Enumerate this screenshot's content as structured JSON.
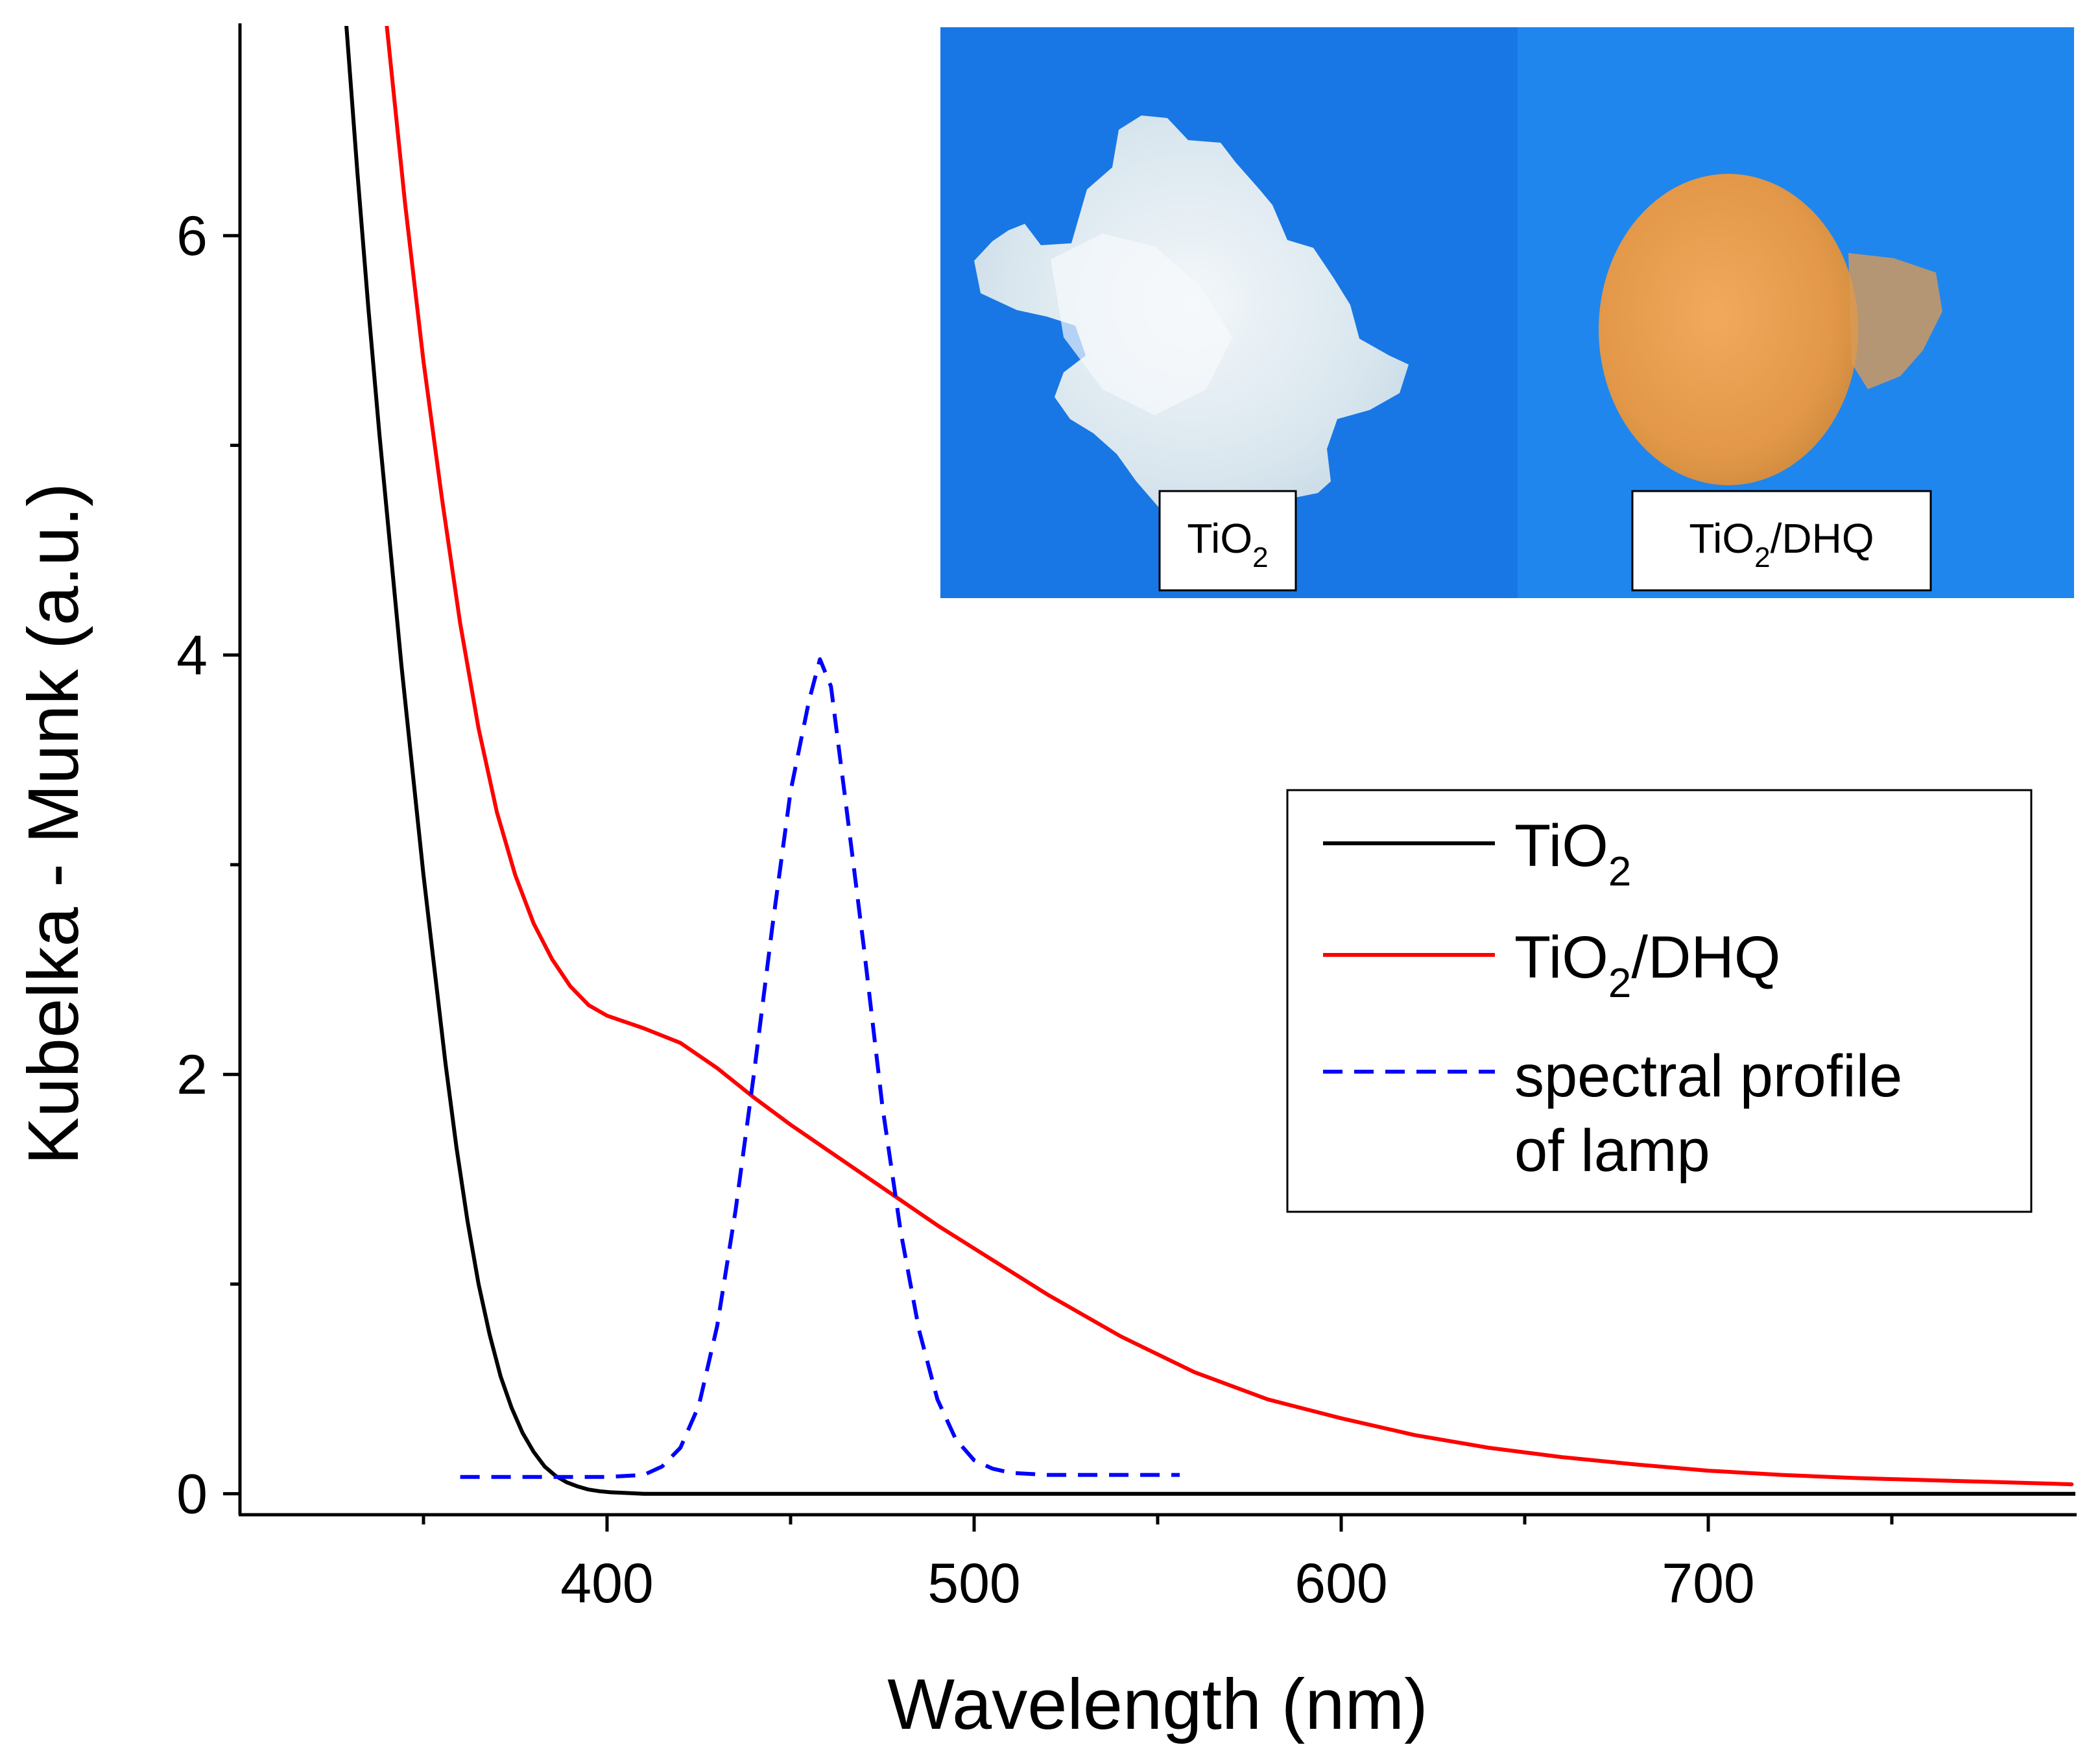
{
  "chart_data": {
    "type": "line",
    "title": "",
    "xlabel": "Wavelength (nm)",
    "ylabel": "Kubelka - Munk (a.u.)",
    "xlim": [
      300,
      800
    ],
    "ylim": [
      -0.1,
      7
    ],
    "xticks": [
      {
        "value": 400,
        "label": "400"
      },
      {
        "value": 500,
        "label": "500"
      },
      {
        "value": 600,
        "label": "600"
      },
      {
        "value": 700,
        "label": "700"
      }
    ],
    "xminor": [
      350,
      450,
      550,
      650,
      750
    ],
    "yticks": [
      {
        "value": 0,
        "label": "0"
      },
      {
        "value": 2,
        "label": "2"
      },
      {
        "value": 4,
        "label": "4"
      },
      {
        "value": 6,
        "label": "6"
      }
    ],
    "yminor": [
      1,
      3,
      5
    ],
    "grid": false,
    "legend": {
      "position": "right",
      "entries": [
        {
          "base": "TiO",
          "sub": "2",
          "tail": ""
        },
        {
          "base": "TiO",
          "sub": "2",
          "tail": "/DHQ"
        },
        {
          "lines": [
            "spectral profile",
            "of lamp"
          ]
        }
      ]
    },
    "series": [
      {
        "name": "TiO2",
        "color": "#000000",
        "dash": false,
        "x": [
          329,
          332,
          335,
          338,
          341,
          344,
          347,
          350,
          353,
          356,
          359,
          362,
          365,
          368,
          371,
          374,
          377,
          380,
          383,
          386,
          389,
          392,
          395,
          398,
          401,
          405,
          410,
          420,
          450,
          500,
          600,
          700,
          800
        ],
        "y": [
          7.0,
          6.3,
          5.65,
          5.05,
          4.5,
          3.95,
          3.45,
          2.95,
          2.5,
          2.05,
          1.65,
          1.3,
          1.0,
          0.76,
          0.56,
          0.41,
          0.29,
          0.2,
          0.13,
          0.085,
          0.055,
          0.035,
          0.02,
          0.012,
          0.007,
          0.004,
          0.0,
          0.0,
          0.0,
          0.0,
          0.0,
          0.0,
          0.0
        ]
      },
      {
        "name": "TiO2/DHQ",
        "color": "#ff0000",
        "dash": false,
        "x": [
          340,
          345,
          350,
          355,
          360,
          365,
          370,
          375,
          380,
          385,
          390,
          395,
          400,
          410,
          420,
          430,
          440,
          450,
          460,
          470,
          480,
          490,
          500,
          520,
          540,
          560,
          580,
          600,
          620,
          640,
          660,
          680,
          700,
          720,
          740,
          760,
          780,
          799
        ],
        "y": [
          7.0,
          6.15,
          5.4,
          4.75,
          4.15,
          3.65,
          3.25,
          2.95,
          2.72,
          2.55,
          2.42,
          2.33,
          2.28,
          2.22,
          2.15,
          2.03,
          1.89,
          1.76,
          1.64,
          1.52,
          1.4,
          1.28,
          1.17,
          0.95,
          0.75,
          0.58,
          0.45,
          0.36,
          0.28,
          0.22,
          0.175,
          0.14,
          0.11,
          0.09,
          0.075,
          0.065,
          0.055,
          0.045
        ]
      },
      {
        "name": "spectral profile of lamp",
        "color": "#0000ff",
        "dash": true,
        "x": [
          360,
          370,
          380,
          390,
          400,
          410,
          415,
          420,
          425,
          430,
          435,
          440,
          445,
          450,
          455,
          458,
          461,
          465,
          470,
          475,
          480,
          485,
          490,
          495,
          500,
          505,
          510,
          520,
          530,
          540,
          556
        ],
        "y": [
          0.08,
          0.08,
          0.08,
          0.08,
          0.08,
          0.09,
          0.13,
          0.22,
          0.42,
          0.8,
          1.35,
          2.0,
          2.7,
          3.35,
          3.78,
          3.98,
          3.85,
          3.3,
          2.6,
          1.85,
          1.25,
          0.78,
          0.45,
          0.26,
          0.16,
          0.12,
          0.1,
          0.09,
          0.09,
          0.09,
          0.09
        ]
      }
    ],
    "inset": {
      "left_label": {
        "base": "TiO",
        "sub": "2",
        "tail": ""
      },
      "right_label": {
        "base": "TiO",
        "sub": "2",
        "tail": "/DHQ"
      }
    }
  }
}
